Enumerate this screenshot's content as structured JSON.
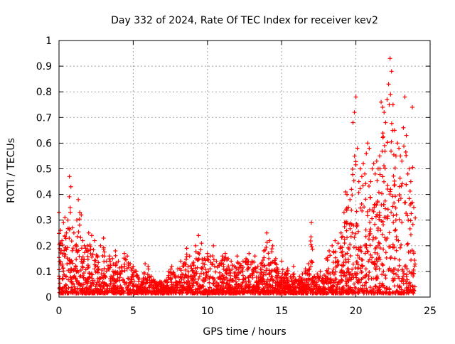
{
  "chart_data": {
    "type": "scatter",
    "title": "Day 332 of 2024, Rate Of TEC Index for receiver kev2",
    "xlabel": "GPS time / hours",
    "ylabel": "ROTI / TECUs",
    "xlim": [
      0,
      25
    ],
    "ylim": [
      0,
      1
    ],
    "xticks": [
      0,
      5,
      10,
      15,
      20,
      25
    ],
    "yticks": [
      0,
      0.1,
      0.2,
      0.3,
      0.4,
      0.5,
      0.6,
      0.7,
      0.8,
      0.9,
      1
    ],
    "ytick_labels": [
      "0",
      "0.1",
      "0.2",
      "0.3",
      "0.4",
      "0.5",
      "0.6",
      "0.7",
      "0.8",
      "0.9",
      "1"
    ],
    "grid": true,
    "marker": "+",
    "color": "#ff0000",
    "series": [
      {
        "x": [
          0.0,
          0.1,
          0.2,
          0.3,
          0.4,
          0.5,
          0.6,
          0.7,
          0.8,
          0.9,
          1.0,
          1.1,
          1.2,
          1.3,
          1.4,
          1.5,
          1.6,
          1.7,
          1.8,
          1.9,
          2.0,
          2.2,
          2.4,
          2.6,
          2.8,
          3.0,
          3.2,
          3.4,
          3.6,
          3.8,
          4.0,
          4.2,
          4.4,
          4.6,
          4.8,
          5.0,
          5.2,
          5.4,
          5.6,
          5.8,
          6.0,
          6.2,
          6.4,
          6.6,
          6.8,
          7.0,
          7.2,
          7.4,
          7.6,
          7.8,
          8.0,
          8.2,
          8.4,
          8.6,
          8.8,
          9.0,
          9.2,
          9.4,
          9.6,
          9.8,
          10.0,
          10.2,
          10.4,
          10.6,
          10.8,
          11.0,
          11.2,
          11.4,
          11.6,
          11.8,
          12.0,
          12.2,
          12.4,
          12.6,
          12.8,
          13.0,
          13.2,
          13.4,
          13.6,
          13.8,
          14.0,
          14.2,
          14.4,
          14.6,
          14.8,
          15.0,
          15.2,
          15.4,
          15.6,
          15.8,
          16.0,
          16.2,
          16.4,
          16.6,
          16.8,
          17.0,
          17.2,
          17.4,
          17.6,
          17.8,
          18.0,
          18.2,
          18.4,
          18.6,
          18.8,
          19.0,
          19.2,
          19.3,
          19.4,
          19.5,
          19.6,
          19.7,
          19.8,
          19.9,
          20.0,
          20.1,
          20.2,
          20.3,
          20.4,
          20.5,
          20.6,
          20.7,
          20.8,
          20.9,
          21.0,
          21.1,
          21.2,
          21.3,
          21.4,
          21.5,
          21.6,
          21.7,
          21.8,
          21.9,
          22.0,
          22.1,
          22.2,
          22.3,
          22.4,
          22.5,
          22.6,
          22.7,
          22.8,
          22.9,
          23.0,
          23.1,
          23.2,
          23.3,
          23.4,
          23.5,
          23.6,
          23.7,
          23.8,
          23.9
        ],
        "y": [
          0.33,
          0.26,
          0.22,
          0.29,
          0.31,
          0.25,
          0.3,
          0.47,
          0.43,
          0.27,
          0.25,
          0.2,
          0.3,
          0.38,
          0.33,
          0.32,
          0.22,
          0.2,
          0.19,
          0.2,
          0.25,
          0.24,
          0.22,
          0.16,
          0.2,
          0.23,
          0.14,
          0.16,
          0.15,
          0.18,
          0.14,
          0.12,
          0.17,
          0.16,
          0.13,
          0.12,
          0.1,
          0.07,
          0.05,
          0.13,
          0.12,
          0.08,
          0.06,
          0.05,
          0.06,
          0.05,
          0.06,
          0.1,
          0.12,
          0.08,
          0.11,
          0.14,
          0.13,
          0.19,
          0.16,
          0.13,
          0.2,
          0.24,
          0.21,
          0.15,
          0.17,
          0.16,
          0.2,
          0.14,
          0.13,
          0.16,
          0.17,
          0.15,
          0.14,
          0.12,
          0.16,
          0.13,
          0.14,
          0.15,
          0.17,
          0.14,
          0.16,
          0.12,
          0.13,
          0.18,
          0.25,
          0.22,
          0.2,
          0.15,
          0.1,
          0.14,
          0.09,
          0.11,
          0.08,
          0.12,
          0.06,
          0.08,
          0.09,
          0.11,
          0.13,
          0.29,
          0.08,
          0.09,
          0.1,
          0.07,
          0.15,
          0.18,
          0.2,
          0.22,
          0.21,
          0.25,
          0.33,
          0.41,
          0.4,
          0.35,
          0.38,
          0.42,
          0.68,
          0.72,
          0.78,
          0.58,
          0.45,
          0.5,
          0.47,
          0.52,
          0.48,
          0.56,
          0.6,
          0.58,
          0.45,
          0.5,
          0.52,
          0.48,
          0.53,
          0.5,
          0.55,
          0.76,
          0.74,
          0.72,
          0.68,
          0.77,
          0.83,
          0.93,
          0.88,
          0.75,
          0.65,
          0.55,
          0.6,
          0.58,
          0.55,
          0.53,
          0.66,
          0.78,
          0.63,
          0.48,
          0.5,
          0.45,
          0.74,
          0.35
        ]
      }
    ]
  }
}
